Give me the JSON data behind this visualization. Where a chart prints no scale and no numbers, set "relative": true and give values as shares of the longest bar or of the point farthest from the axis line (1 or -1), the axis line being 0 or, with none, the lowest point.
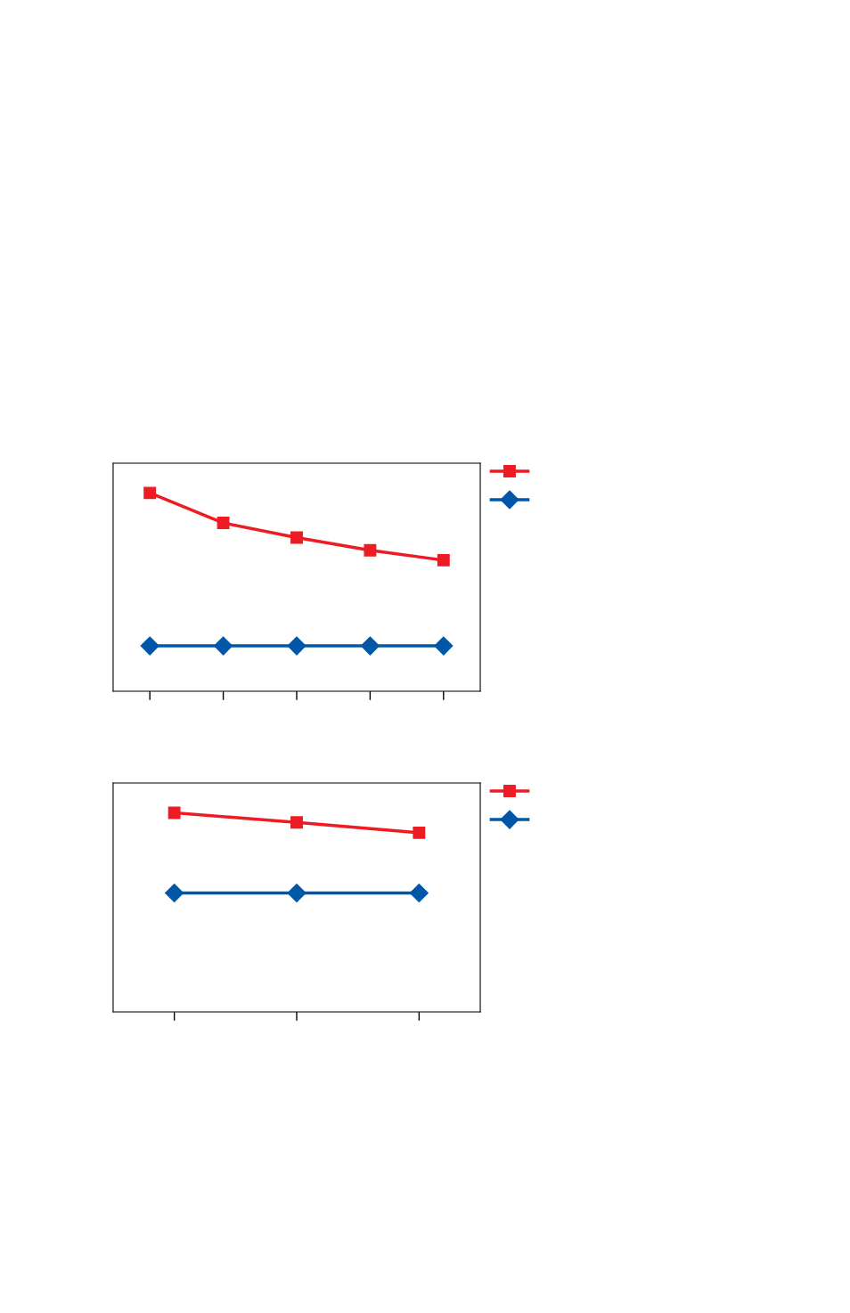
{
  "chart_data": [
    {
      "type": "line",
      "relative": true,
      "categories": [
        null,
        null,
        null,
        null,
        null
      ],
      "series": [
        {
          "color": "#ed1c24",
          "marker": "square",
          "values": [
            1,
            0.849,
            0.775,
            0.711,
            0.661
          ]
        },
        {
          "color": "#0057a8",
          "marker": "diamond",
          "values": [
            0.229,
            0.229,
            0.229,
            0.229,
            0.229
          ]
        }
      ],
      "line_style": "solid",
      "grid": false
    },
    {
      "type": "line",
      "relative": true,
      "categories": [
        null,
        null,
        null
      ],
      "series": [
        {
          "color": "#ed1c24",
          "marker": "square",
          "values": [
            1,
            0.952,
            0.9
          ]
        },
        {
          "color": "#0057a8",
          "marker": "diamond",
          "values": [
            0.597,
            0.597,
            0.597
          ]
        }
      ],
      "line_style": "solid",
      "grid": false
    }
  ]
}
